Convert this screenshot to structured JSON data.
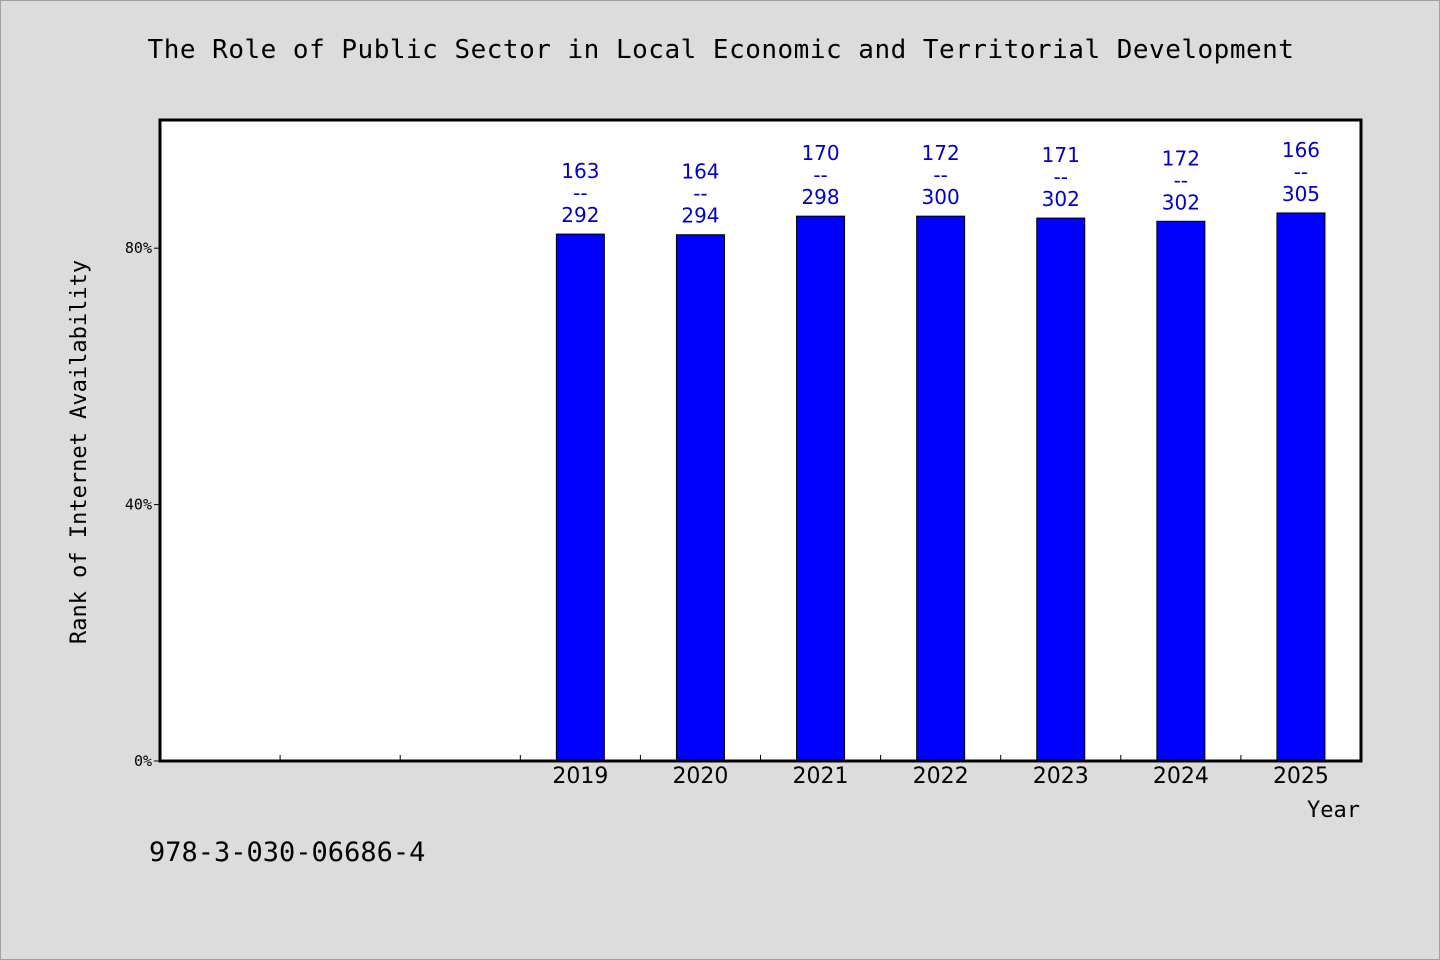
{
  "figure": {
    "title": "The Role of Public Sector in Local Economic and Territorial Development",
    "footer_code": "978-3-030-06686-4"
  },
  "colors": {
    "background": "#dcdcdc",
    "plot_background": "#ffffff",
    "bar": "#0000ff",
    "label": "#0000cc"
  },
  "chart_data": {
    "type": "bar",
    "title": "The Role of Public Sector in Local Economic and Territorial Development",
    "xlabel": "Year",
    "ylabel": "Rank of Internet Availability",
    "categories": [
      "",
      "",
      "",
      "2019",
      "2020",
      "2021",
      "2022",
      "2023",
      "2024",
      "2025"
    ],
    "values": [
      null,
      null,
      null,
      82.2,
      82.1,
      85.0,
      85.0,
      84.7,
      84.2,
      85.5
    ],
    "data_labels": [
      null,
      null,
      null,
      {
        "top": "163",
        "sep": "--",
        "bottom": "292"
      },
      {
        "top": "164",
        "sep": "--",
        "bottom": "294"
      },
      {
        "top": "170",
        "sep": "--",
        "bottom": "298"
      },
      {
        "top": "172",
        "sep": "--",
        "bottom": "300"
      },
      {
        "top": "171",
        "sep": "--",
        "bottom": "302"
      },
      {
        "top": "172",
        "sep": "--",
        "bottom": "302"
      },
      {
        "top": "166",
        "sep": "--",
        "bottom": "305"
      }
    ],
    "ylim": [
      0,
      100
    ],
    "yticks": [
      0,
      40,
      80
    ],
    "ytick_labels": [
      "0%",
      "40%",
      "80%"
    ],
    "grid": false,
    "legend": "none"
  }
}
